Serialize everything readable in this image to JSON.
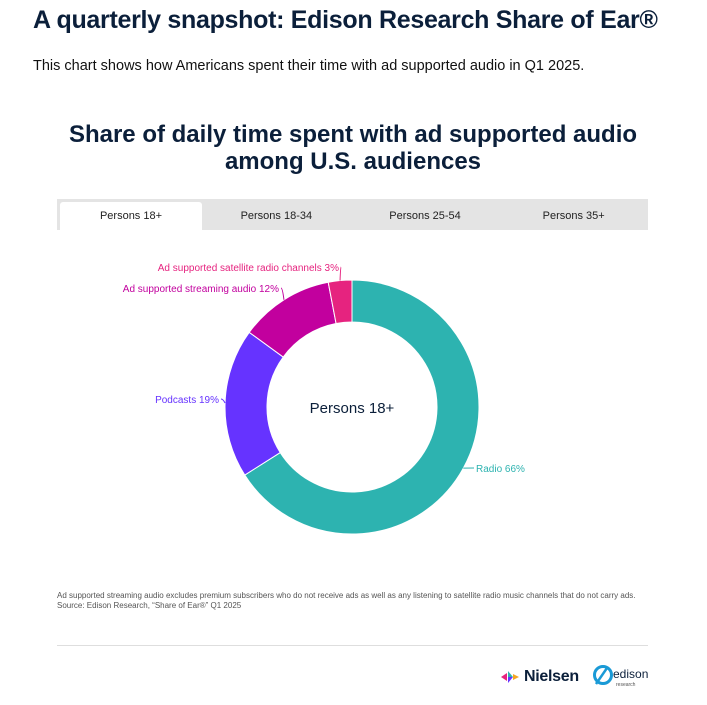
{
  "header": {
    "title": "A quarterly snapshot: Edison Research Share of Ear®",
    "subtitle": "This chart shows how Americans spent their time with ad supported audio in Q1 2025."
  },
  "tabs": [
    {
      "label": "Persons 18+",
      "active": true
    },
    {
      "label": "Persons 18-34",
      "active": false
    },
    {
      "label": "Persons 25-54",
      "active": false
    },
    {
      "label": "Persons 35+",
      "active": false
    }
  ],
  "chart_data": {
    "type": "pie",
    "title": "Share of daily time spent with ad supported audio among U.S. audiences",
    "center_label": "Persons 18+",
    "unit": "%",
    "slices": [
      {
        "label": "Radio",
        "value": 66,
        "display": "Radio 66%",
        "color": "#2db3b0"
      },
      {
        "label": "Podcasts",
        "value": 19,
        "display": "Podcasts 19%",
        "color": "#6633ff"
      },
      {
        "label": "Ad supported streaming audio",
        "value": 12,
        "display": "Ad supported streaming audio 12%",
        "color": "#c2009e"
      },
      {
        "label": "Ad supported satellite radio channels",
        "value": 3,
        "display": "Ad supported satellite radio channels 3%",
        "color": "#e6237f"
      }
    ]
  },
  "footnote": {
    "note": "Ad supported streaming audio excludes premium subscribers who do not receive ads as well as any listening to satellite radio music channels that do not carry ads.",
    "source": "Source: Edison Research, “Share of Ear®” Q1 2025"
  },
  "logos": {
    "nielsen": "Nielsen",
    "edison": "edison",
    "edison_sub": "research"
  },
  "colors": {
    "title": "#0b1f3a",
    "tab_bar": "#e4e4e4"
  }
}
